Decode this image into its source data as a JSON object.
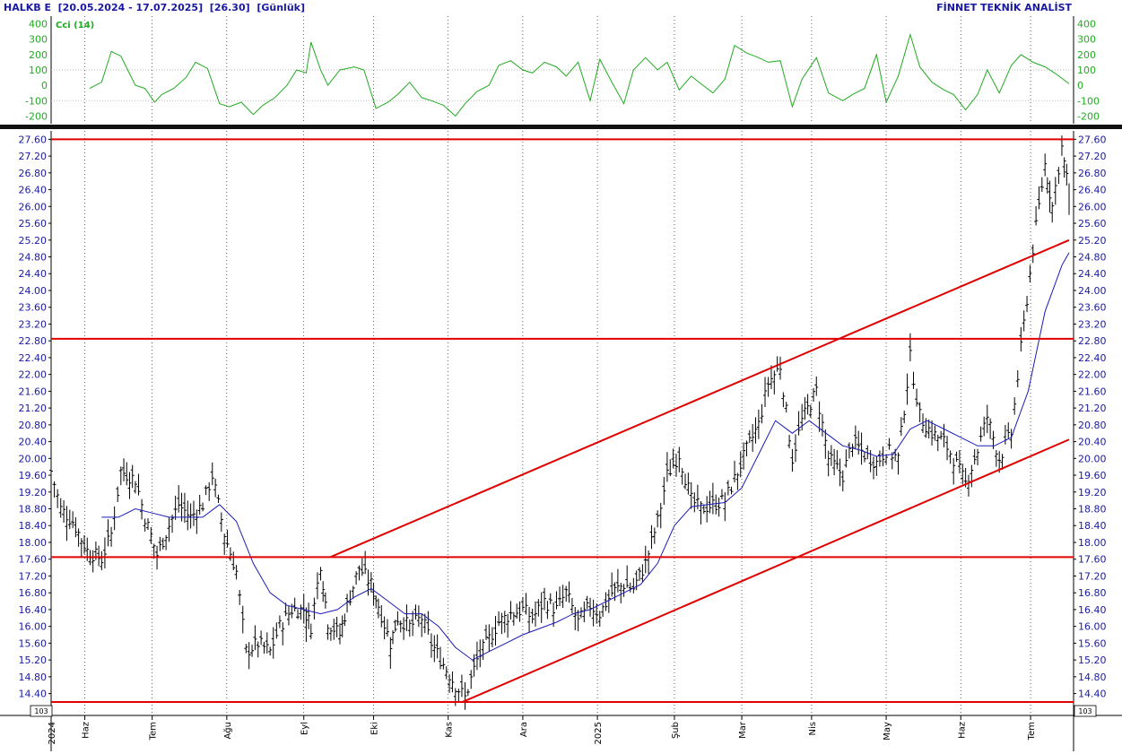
{
  "header": {
    "symbol": "HALKB E",
    "date_range": "[20.05.2024 - 17.07.2025]",
    "last_price": "[26.30]",
    "period": "[Günlük]",
    "brand": "FİNNET TEKNİK ANALİST"
  },
  "colors": {
    "price_axis_text": "#1a1aa0",
    "cci_color": "#22aa22",
    "bars": "#000000",
    "ma": "#1a1ab8",
    "levels": "#e00000"
  },
  "chart_data": [
    {
      "type": "line",
      "panel": "indicator",
      "title": "Cci (14)",
      "ylim": [
        -250,
        450
      ],
      "yticks": [
        400,
        300,
        200,
        100,
        0,
        -100,
        -200
      ],
      "ytick_labels": [
        "400",
        "300",
        "200",
        "100",
        "0",
        "-100",
        "-200"
      ],
      "reference_lines": [
        100,
        -100
      ],
      "series": [
        {
          "name": "Cci (14)",
          "points": [
            [
              "2024-06-05",
              -20
            ],
            [
              "2024-06-10",
              20
            ],
            [
              "2024-06-14",
              220
            ],
            [
              "2024-06-18",
              190
            ],
            [
              "2024-06-24",
              0
            ],
            [
              "2024-06-28",
              -20
            ],
            [
              "2024-07-02",
              -110
            ],
            [
              "2024-07-05",
              -60
            ],
            [
              "2024-07-10",
              -20
            ],
            [
              "2024-07-15",
              50
            ],
            [
              "2024-07-19",
              150
            ],
            [
              "2024-07-24",
              110
            ],
            [
              "2024-07-29",
              -120
            ],
            [
              "2024-08-02",
              -140
            ],
            [
              "2024-08-07",
              -110
            ],
            [
              "2024-08-12",
              -190
            ],
            [
              "2024-08-16",
              -130
            ],
            [
              "2024-08-21",
              -80
            ],
            [
              "2024-08-26",
              0
            ],
            [
              "2024-08-30",
              100
            ],
            [
              "2024-09-03",
              80
            ],
            [
              "2024-09-05",
              280
            ],
            [
              "2024-09-09",
              100
            ],
            [
              "2024-09-12",
              0
            ],
            [
              "2024-09-17",
              100
            ],
            [
              "2024-09-23",
              120
            ],
            [
              "2024-09-27",
              100
            ],
            [
              "2024-10-02",
              -150
            ],
            [
              "2024-10-07",
              -110
            ],
            [
              "2024-10-11",
              -60
            ],
            [
              "2024-10-16",
              20
            ],
            [
              "2024-10-21",
              -80
            ],
            [
              "2024-10-25",
              -100
            ],
            [
              "2024-10-30",
              -130
            ],
            [
              "2024-11-04",
              -200
            ],
            [
              "2024-11-08",
              -120
            ],
            [
              "2024-11-13",
              -40
            ],
            [
              "2024-11-18",
              0
            ],
            [
              "2024-11-22",
              130
            ],
            [
              "2024-11-27",
              160
            ],
            [
              "2024-12-02",
              100
            ],
            [
              "2024-12-06",
              80
            ],
            [
              "2024-12-11",
              150
            ],
            [
              "2024-12-16",
              120
            ],
            [
              "2024-12-20",
              60
            ],
            [
              "2024-12-25",
              150
            ],
            [
              "2024-12-30",
              -100
            ],
            [
              "2025-01-03",
              170
            ],
            [
              "2025-01-08",
              20
            ],
            [
              "2025-01-13",
              -120
            ],
            [
              "2025-01-17",
              100
            ],
            [
              "2025-01-22",
              180
            ],
            [
              "2025-01-27",
              100
            ],
            [
              "2025-01-31",
              150
            ],
            [
              "2025-02-05",
              -30
            ],
            [
              "2025-02-10",
              60
            ],
            [
              "2025-02-14",
              10
            ],
            [
              "2025-02-19",
              -50
            ],
            [
              "2025-02-24",
              40
            ],
            [
              "2025-02-28",
              260
            ],
            [
              "2025-03-05",
              210
            ],
            [
              "2025-03-10",
              180
            ],
            [
              "2025-03-14",
              150
            ],
            [
              "2025-03-19",
              160
            ],
            [
              "2025-03-24",
              -140
            ],
            [
              "2025-03-28",
              40
            ],
            [
              "2025-04-03",
              180
            ],
            [
              "2025-04-08",
              -50
            ],
            [
              "2025-04-14",
              -100
            ],
            [
              "2025-04-18",
              -60
            ],
            [
              "2025-04-23",
              -20
            ],
            [
              "2025-04-28",
              200
            ],
            [
              "2025-05-02",
              -110
            ],
            [
              "2025-05-07",
              60
            ],
            [
              "2025-05-12",
              330
            ],
            [
              "2025-05-16",
              120
            ],
            [
              "2025-05-21",
              20
            ],
            [
              "2025-05-26",
              -30
            ],
            [
              "2025-05-30",
              -60
            ],
            [
              "2025-06-04",
              -160
            ],
            [
              "2025-06-09",
              -60
            ],
            [
              "2025-06-13",
              100
            ],
            [
              "2025-06-18",
              -50
            ],
            [
              "2025-06-23",
              130
            ],
            [
              "2025-06-27",
              200
            ],
            [
              "2025-07-02",
              150
            ],
            [
              "2025-07-07",
              120
            ],
            [
              "2025-07-11",
              80
            ],
            [
              "2025-07-17",
              10
            ]
          ]
        }
      ]
    },
    {
      "type": "ohlc",
      "panel": "price",
      "ylim": [
        13.9,
        27.8
      ],
      "yticks": [
        27.6,
        27.2,
        26.8,
        26.4,
        26.0,
        25.6,
        25.2,
        24.8,
        24.4,
        24.0,
        23.6,
        23.2,
        22.8,
        22.4,
        22.0,
        21.6,
        21.2,
        20.8,
        20.4,
        20.0,
        19.6,
        19.2,
        18.8,
        18.4,
        18.0,
        17.6,
        17.2,
        16.8,
        16.4,
        16.0,
        15.6,
        15.2,
        14.8,
        14.4
      ],
      "ytick_labels": [
        "27.60",
        "27.20",
        "26.80",
        "26.40",
        "26.00",
        "25.60",
        "25.20",
        "24.80",
        "24.40",
        "24.00",
        "23.60",
        "23.20",
        "22.80",
        "22.40",
        "22.00",
        "21.60",
        "21.20",
        "20.80",
        "20.40",
        "20.00",
        "19.60",
        "19.20",
        "18.80",
        "18.40",
        "18.00",
        "17.60",
        "17.20",
        "16.80",
        "16.40",
        "16.00",
        "15.60",
        "15.20",
        "14.80",
        "14.40"
      ],
      "scale_badge": "10^3",
      "xaxis": {
        "range": [
          "2024-05-20",
          "2025-07-17"
        ],
        "ticks": [
          {
            "date": "2024-05-20",
            "label": "2024"
          },
          {
            "date": "2024-06-03",
            "label": "Haz"
          },
          {
            "date": "2024-07-01",
            "label": "Tem"
          },
          {
            "date": "2024-08-01",
            "label": "Ağu"
          },
          {
            "date": "2024-09-02",
            "label": "Eyl"
          },
          {
            "date": "2024-10-01",
            "label": "Eki"
          },
          {
            "date": "2024-11-01",
            "label": "Kas"
          },
          {
            "date": "2024-12-02",
            "label": "Ara"
          },
          {
            "date": "2025-01-02",
            "label": "2025"
          },
          {
            "date": "2025-02-03",
            "label": "Şub"
          },
          {
            "date": "2025-03-03",
            "label": "Mar"
          },
          {
            "date": "2025-04-01",
            "label": "Nis"
          },
          {
            "date": "2025-05-02",
            "label": "May"
          },
          {
            "date": "2025-06-02",
            "label": "Haz"
          },
          {
            "date": "2025-07-01",
            "label": "Tem"
          }
        ]
      },
      "closes": [
        [
          "2024-05-20",
          19.7
        ],
        [
          "2024-05-24",
          18.8
        ],
        [
          "2024-05-29",
          18.5
        ],
        [
          "2024-06-04",
          17.8
        ],
        [
          "2024-06-10",
          17.6
        ],
        [
          "2024-06-14",
          18.2
        ],
        [
          "2024-06-18",
          19.7
        ],
        [
          "2024-06-24",
          19.5
        ],
        [
          "2024-06-28",
          18.6
        ],
        [
          "2024-07-03",
          17.7
        ],
        [
          "2024-07-08",
          18.4
        ],
        [
          "2024-07-12",
          18.9
        ],
        [
          "2024-07-17",
          18.6
        ],
        [
          "2024-07-22",
          18.9
        ],
        [
          "2024-07-26",
          19.6
        ],
        [
          "2024-07-31",
          18.2
        ],
        [
          "2024-08-05",
          17.3
        ],
        [
          "2024-08-09",
          15.4
        ],
        [
          "2024-08-14",
          15.6
        ],
        [
          "2024-08-19",
          15.4
        ],
        [
          "2024-08-23",
          16.0
        ],
        [
          "2024-08-28",
          16.4
        ],
        [
          "2024-09-02",
          16.4
        ],
        [
          "2024-09-05",
          16.0
        ],
        [
          "2024-09-09",
          17.5
        ],
        [
          "2024-09-12",
          16.1
        ],
        [
          "2024-09-17",
          15.8
        ],
        [
          "2024-09-20",
          16.5
        ],
        [
          "2024-09-25",
          17.4
        ],
        [
          "2024-09-30",
          17.0
        ],
        [
          "2024-10-03",
          16.5
        ],
        [
          "2024-10-08",
          15.6
        ],
        [
          "2024-10-11",
          16.2
        ],
        [
          "2024-10-16",
          16.0
        ],
        [
          "2024-10-21",
          16.2
        ],
        [
          "2024-10-25",
          15.6
        ],
        [
          "2024-10-30",
          15.1
        ],
        [
          "2024-11-04",
          14.6
        ],
        [
          "2024-11-08",
          14.3
        ],
        [
          "2024-11-13",
          15.2
        ],
        [
          "2024-11-18",
          15.7
        ],
        [
          "2024-11-22",
          16.1
        ],
        [
          "2024-11-27",
          16.3
        ],
        [
          "2024-12-02",
          16.4
        ],
        [
          "2024-12-06",
          16.2
        ],
        [
          "2024-12-11",
          16.6
        ],
        [
          "2024-12-16",
          16.4
        ],
        [
          "2024-12-20",
          16.8
        ],
        [
          "2024-12-25",
          16.1
        ],
        [
          "2024-12-30",
          16.5
        ],
        [
          "2025-01-03",
          16.3
        ],
        [
          "2025-01-08",
          16.8
        ],
        [
          "2025-01-13",
          17.0
        ],
        [
          "2025-01-17",
          16.9
        ],
        [
          "2025-01-22",
          17.5
        ],
        [
          "2025-01-27",
          18.5
        ],
        [
          "2025-01-31",
          19.6
        ],
        [
          "2025-02-05",
          20.1
        ],
        [
          "2025-02-10",
          19.0
        ],
        [
          "2025-02-14",
          18.8
        ],
        [
          "2025-02-19",
          18.9
        ],
        [
          "2025-02-24",
          19.0
        ],
        [
          "2025-02-28",
          19.5
        ],
        [
          "2025-03-05",
          20.2
        ],
        [
          "2025-03-10",
          20.8
        ],
        [
          "2025-03-14",
          21.8
        ],
        [
          "2025-03-19",
          22.2
        ],
        [
          "2025-03-24",
          20.0
        ],
        [
          "2025-03-28",
          20.9
        ],
        [
          "2025-04-03",
          21.6
        ],
        [
          "2025-04-08",
          20.0
        ],
        [
          "2025-04-14",
          19.6
        ],
        [
          "2025-04-18",
          20.4
        ],
        [
          "2025-04-23",
          20.1
        ],
        [
          "2025-04-28",
          19.9
        ],
        [
          "2025-05-02",
          20.2
        ],
        [
          "2025-05-07",
          20.0
        ],
        [
          "2025-05-12",
          22.4
        ],
        [
          "2025-05-16",
          21.0
        ],
        [
          "2025-05-21",
          20.6
        ],
        [
          "2025-05-26",
          20.4
        ],
        [
          "2025-05-30",
          20.0
        ],
        [
          "2025-06-04",
          19.4
        ],
        [
          "2025-06-09",
          20.2
        ],
        [
          "2025-06-13",
          21.0
        ],
        [
          "2025-06-18",
          20.0
        ],
        [
          "2025-06-23",
          20.6
        ],
        [
          "2025-06-27",
          22.6
        ],
        [
          "2025-07-02",
          25.0
        ],
        [
          "2025-07-07",
          27.0
        ],
        [
          "2025-07-10",
          26.0
        ],
        [
          "2025-07-14",
          27.4
        ],
        [
          "2025-07-17",
          26.3
        ]
      ],
      "moving_average": [
        [
          "2024-06-10",
          18.6
        ],
        [
          "2024-06-17",
          18.6
        ],
        [
          "2024-06-24",
          18.8
        ],
        [
          "2024-07-01",
          18.7
        ],
        [
          "2024-07-08",
          18.6
        ],
        [
          "2024-07-15",
          18.6
        ],
        [
          "2024-07-22",
          18.6
        ],
        [
          "2024-07-29",
          18.9
        ],
        [
          "2024-08-05",
          18.5
        ],
        [
          "2024-08-12",
          17.5
        ],
        [
          "2024-08-19",
          16.8
        ],
        [
          "2024-08-26",
          16.5
        ],
        [
          "2024-09-02",
          16.4
        ],
        [
          "2024-09-09",
          16.3
        ],
        [
          "2024-09-16",
          16.4
        ],
        [
          "2024-09-23",
          16.7
        ],
        [
          "2024-09-30",
          16.9
        ],
        [
          "2024-10-07",
          16.6
        ],
        [
          "2024-10-14",
          16.3
        ],
        [
          "2024-10-21",
          16.3
        ],
        [
          "2024-10-28",
          16.0
        ],
        [
          "2024-11-04",
          15.5
        ],
        [
          "2024-11-11",
          15.2
        ],
        [
          "2024-11-18",
          15.4
        ],
        [
          "2024-11-25",
          15.6
        ],
        [
          "2024-12-02",
          15.8
        ],
        [
          "2024-12-09",
          15.95
        ],
        [
          "2024-12-16",
          16.1
        ],
        [
          "2024-12-23",
          16.3
        ],
        [
          "2024-12-30",
          16.4
        ],
        [
          "2025-01-06",
          16.6
        ],
        [
          "2025-01-13",
          16.8
        ],
        [
          "2025-01-20",
          17.0
        ],
        [
          "2025-01-27",
          17.5
        ],
        [
          "2025-02-03",
          18.4
        ],
        [
          "2025-02-10",
          18.85
        ],
        [
          "2025-02-17",
          18.9
        ],
        [
          "2025-02-24",
          18.95
        ],
        [
          "2025-03-03",
          19.3
        ],
        [
          "2025-03-10",
          20.1
        ],
        [
          "2025-03-17",
          20.9
        ],
        [
          "2025-03-24",
          20.6
        ],
        [
          "2025-03-31",
          20.9
        ],
        [
          "2025-04-07",
          20.6
        ],
        [
          "2025-04-14",
          20.3
        ],
        [
          "2025-04-21",
          20.2
        ],
        [
          "2025-04-28",
          20.05
        ],
        [
          "2025-05-05",
          20.1
        ],
        [
          "2025-05-12",
          20.7
        ],
        [
          "2025-05-19",
          20.9
        ],
        [
          "2025-05-26",
          20.7
        ],
        [
          "2025-06-02",
          20.5
        ],
        [
          "2025-06-09",
          20.3
        ],
        [
          "2025-06-16",
          20.3
        ],
        [
          "2025-06-23",
          20.5
        ],
        [
          "2025-06-30",
          21.6
        ],
        [
          "2025-07-07",
          23.5
        ],
        [
          "2025-07-14",
          24.6
        ],
        [
          "2025-07-17",
          24.9
        ]
      ],
      "horizontal_levels": [
        27.6,
        22.85,
        17.65,
        14.2
      ],
      "trendlines": [
        {
          "role": "channel-upper",
          "from": [
            "2024-09-13",
            17.65
          ],
          "to": [
            "2025-07-17",
            25.2
          ]
        },
        {
          "role": "channel-lower",
          "from": [
            "2024-11-07",
            14.2
          ],
          "to": [
            "2025-07-17",
            20.45
          ]
        }
      ]
    }
  ]
}
